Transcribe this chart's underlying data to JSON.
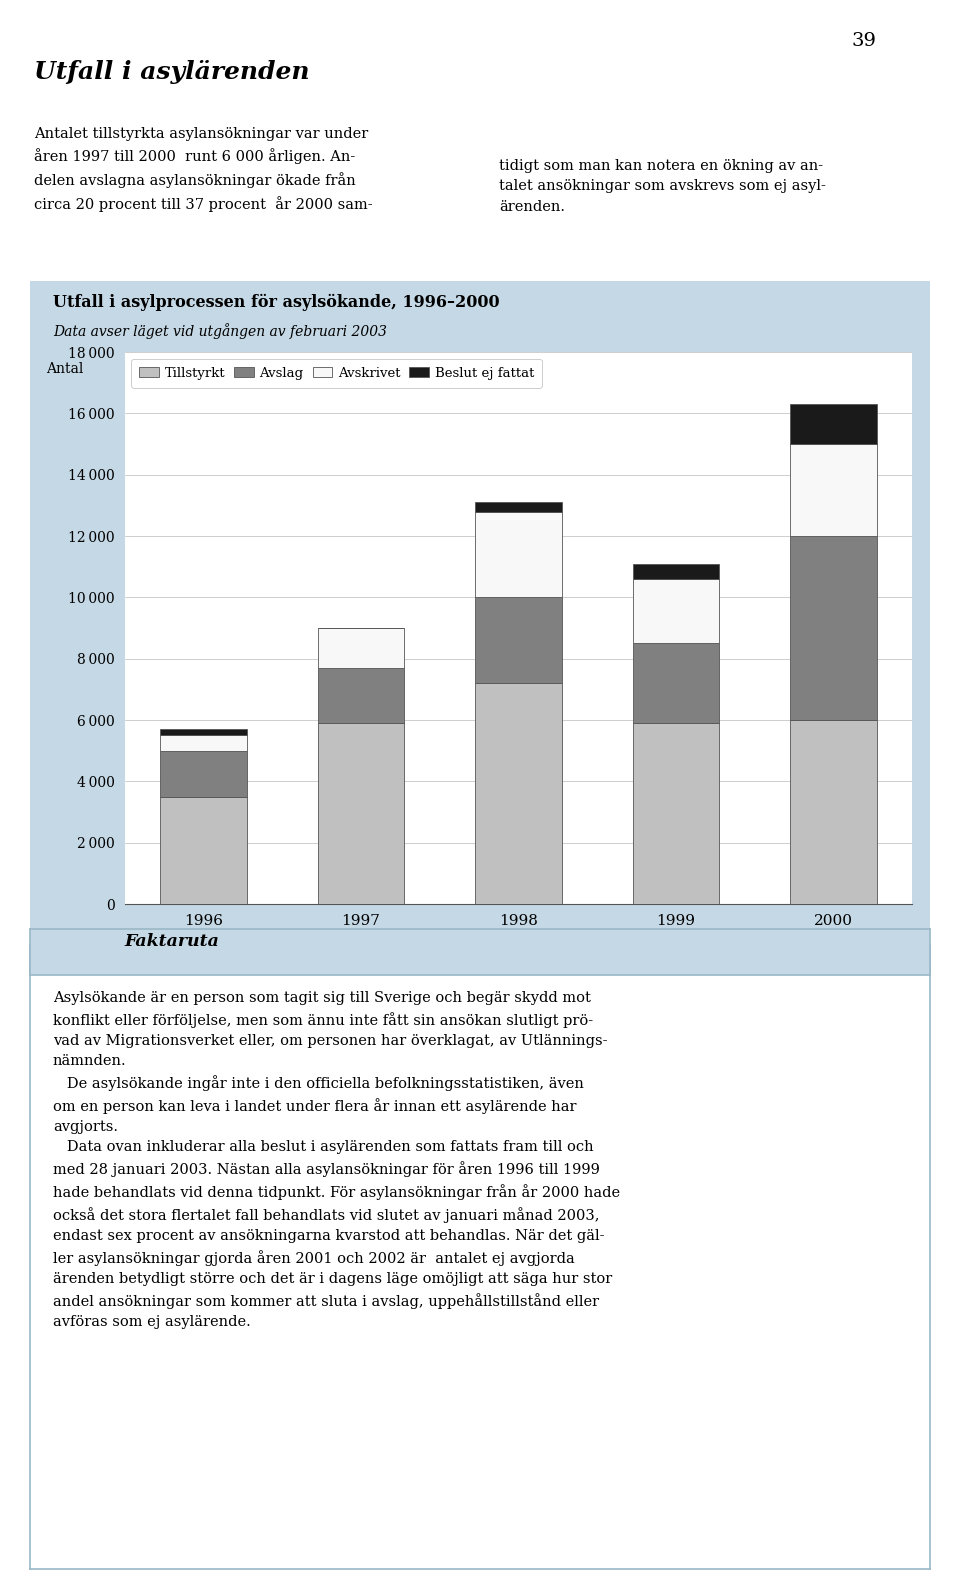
{
  "title": "Utfall i asylprocessen för asylsökande, 1996–2000",
  "subtitle": "Data avser läget vid utgången av februari 2003",
  "ylabel": "Antal",
  "years": [
    "1996",
    "1997",
    "1998",
    "1999",
    "2000"
  ],
  "tillstyrkt": [
    3500,
    5900,
    7200,
    5900,
    6000
  ],
  "avslag": [
    1500,
    1800,
    2800,
    2600,
    6000
  ],
  "avskrivet": [
    500,
    1300,
    2800,
    2100,
    3000
  ],
  "beslut_ej": [
    200,
    0,
    300,
    500,
    1300
  ],
  "color_tillstyrkt": "#c0c0c0",
  "color_avslag": "#808080",
  "color_avskrivet": "#f8f8f8",
  "color_beslut_ej": "#1a1a1a",
  "ylim": [
    0,
    18000
  ],
  "yticks": [
    0,
    2000,
    4000,
    6000,
    8000,
    10000,
    12000,
    14000,
    16000,
    18000
  ],
  "chart_bg_color": "#c5d8e5",
  "plot_bg_color": "#ffffff",
  "bar_edge_color": "#555555",
  "legend_labels": [
    "Tillstyrkt",
    "Avslag",
    "Avskrivet",
    "Beslut ej fattat"
  ],
  "page_number": "39",
  "page_bg": "#ffffff",
  "faktaruta_border": "#9ab8c8",
  "faktaruta_title_bg": "#c5d8e5"
}
